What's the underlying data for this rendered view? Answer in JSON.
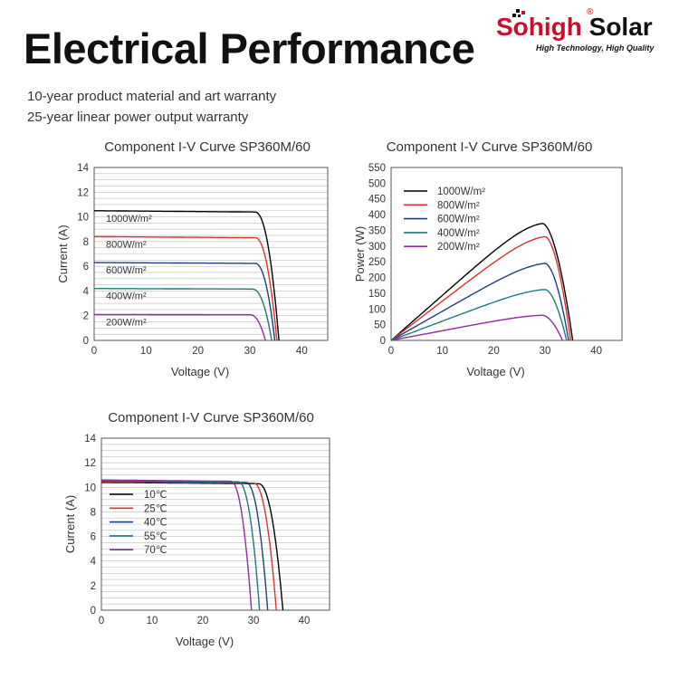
{
  "header": {
    "title": "Electrical Performance",
    "warranty_lines": [
      "10-year product material and art warranty",
      "25-year linear power output warranty"
    ]
  },
  "logo": {
    "brand": "Sohigh",
    "word": "Solar",
    "registered": "®",
    "tagline": "High Technology, High Quality",
    "brand_color": "#c8102e"
  },
  "chart_data": [
    {
      "type": "line",
      "title": "Component I-V Curve SP360M/60",
      "xlabel": "Voltage (V)",
      "ylabel": "Current (A)",
      "xlim": [
        0,
        45
      ],
      "ylim": [
        0,
        14
      ],
      "xticks": [
        0,
        10,
        20,
        30,
        40
      ],
      "yticks": [
        0,
        2,
        4,
        6,
        8,
        10,
        12,
        14
      ],
      "grid": true,
      "legend": "inline-labels",
      "series": [
        {
          "name": "1000W/m²",
          "color": "#000000",
          "isc": 10.5,
          "voc": 35.6,
          "knee": 31
        },
        {
          "name": "800W/m²",
          "color": "#e0312c",
          "isc": 8.4,
          "voc": 35.2,
          "knee": 31
        },
        {
          "name": "600W/m²",
          "color": "#1f3f7a",
          "isc": 6.3,
          "voc": 34.8,
          "knee": 31
        },
        {
          "name": "400W/m²",
          "color": "#1e7a7a",
          "isc": 4.2,
          "voc": 34.2,
          "knee": 30.5
        },
        {
          "name": "200W/m²",
          "color": "#8b2f9e",
          "isc": 2.1,
          "voc": 33.0,
          "knee": 30
        }
      ]
    },
    {
      "type": "line",
      "title": "Component I-V Curve SP360M/60",
      "xlabel": "Voltage (V)",
      "ylabel": "Power (W)",
      "xlim": [
        0,
        45
      ],
      "ylim": [
        0,
        550
      ],
      "xticks": [
        0,
        10,
        20,
        30,
        40
      ],
      "yticks": [
        0,
        50,
        100,
        150,
        200,
        250,
        300,
        350,
        400,
        450,
        500,
        550
      ],
      "grid": false,
      "legend": "top-left",
      "series": [
        {
          "name": "1000W/m²",
          "color": "#000000",
          "pmax": 372,
          "vmp": 29.5,
          "voc": 35.4
        },
        {
          "name": "800W/m²",
          "color": "#e0312c",
          "pmax": 330,
          "vmp": 30,
          "voc": 35
        },
        {
          "name": "600W/m²",
          "color": "#1f3f7a",
          "pmax": 245,
          "vmp": 30,
          "voc": 34.6
        },
        {
          "name": "400W/m²",
          "color": "#1e7a7a",
          "pmax": 162,
          "vmp": 30,
          "voc": 34.2
        },
        {
          "name": "200W/m²",
          "color": "#8b2f9e",
          "pmax": 80,
          "vmp": 29.5,
          "voc": 33.4
        }
      ]
    },
    {
      "type": "line",
      "title": "Component I-V Curve SP360M/60",
      "xlabel": "Voltage (V)",
      "ylabel": "Current (A)",
      "xlim": [
        0,
        45
      ],
      "ylim": [
        0,
        14
      ],
      "xticks": [
        0,
        10,
        20,
        30,
        40
      ],
      "yticks": [
        0,
        2,
        4,
        6,
        8,
        10,
        12,
        14
      ],
      "grid": true,
      "legend": "left",
      "series": [
        {
          "name": "10℃",
          "color": "#000000",
          "isc": 10.4,
          "voc": 35.8,
          "knee": 31
        },
        {
          "name": "25℃",
          "color": "#e0312c",
          "isc": 10.45,
          "voc": 34.5,
          "knee": 30
        },
        {
          "name": "40℃",
          "color": "#1f3f7a",
          "isc": 10.5,
          "voc": 32.8,
          "knee": 28.5
        },
        {
          "name": "55℃",
          "color": "#1e7a7a",
          "isc": 10.55,
          "voc": 31.2,
          "knee": 27
        },
        {
          "name": "70℃",
          "color": "#8b2f9e",
          "isc": 10.6,
          "voc": 29.6,
          "knee": 25.5
        }
      ]
    }
  ]
}
